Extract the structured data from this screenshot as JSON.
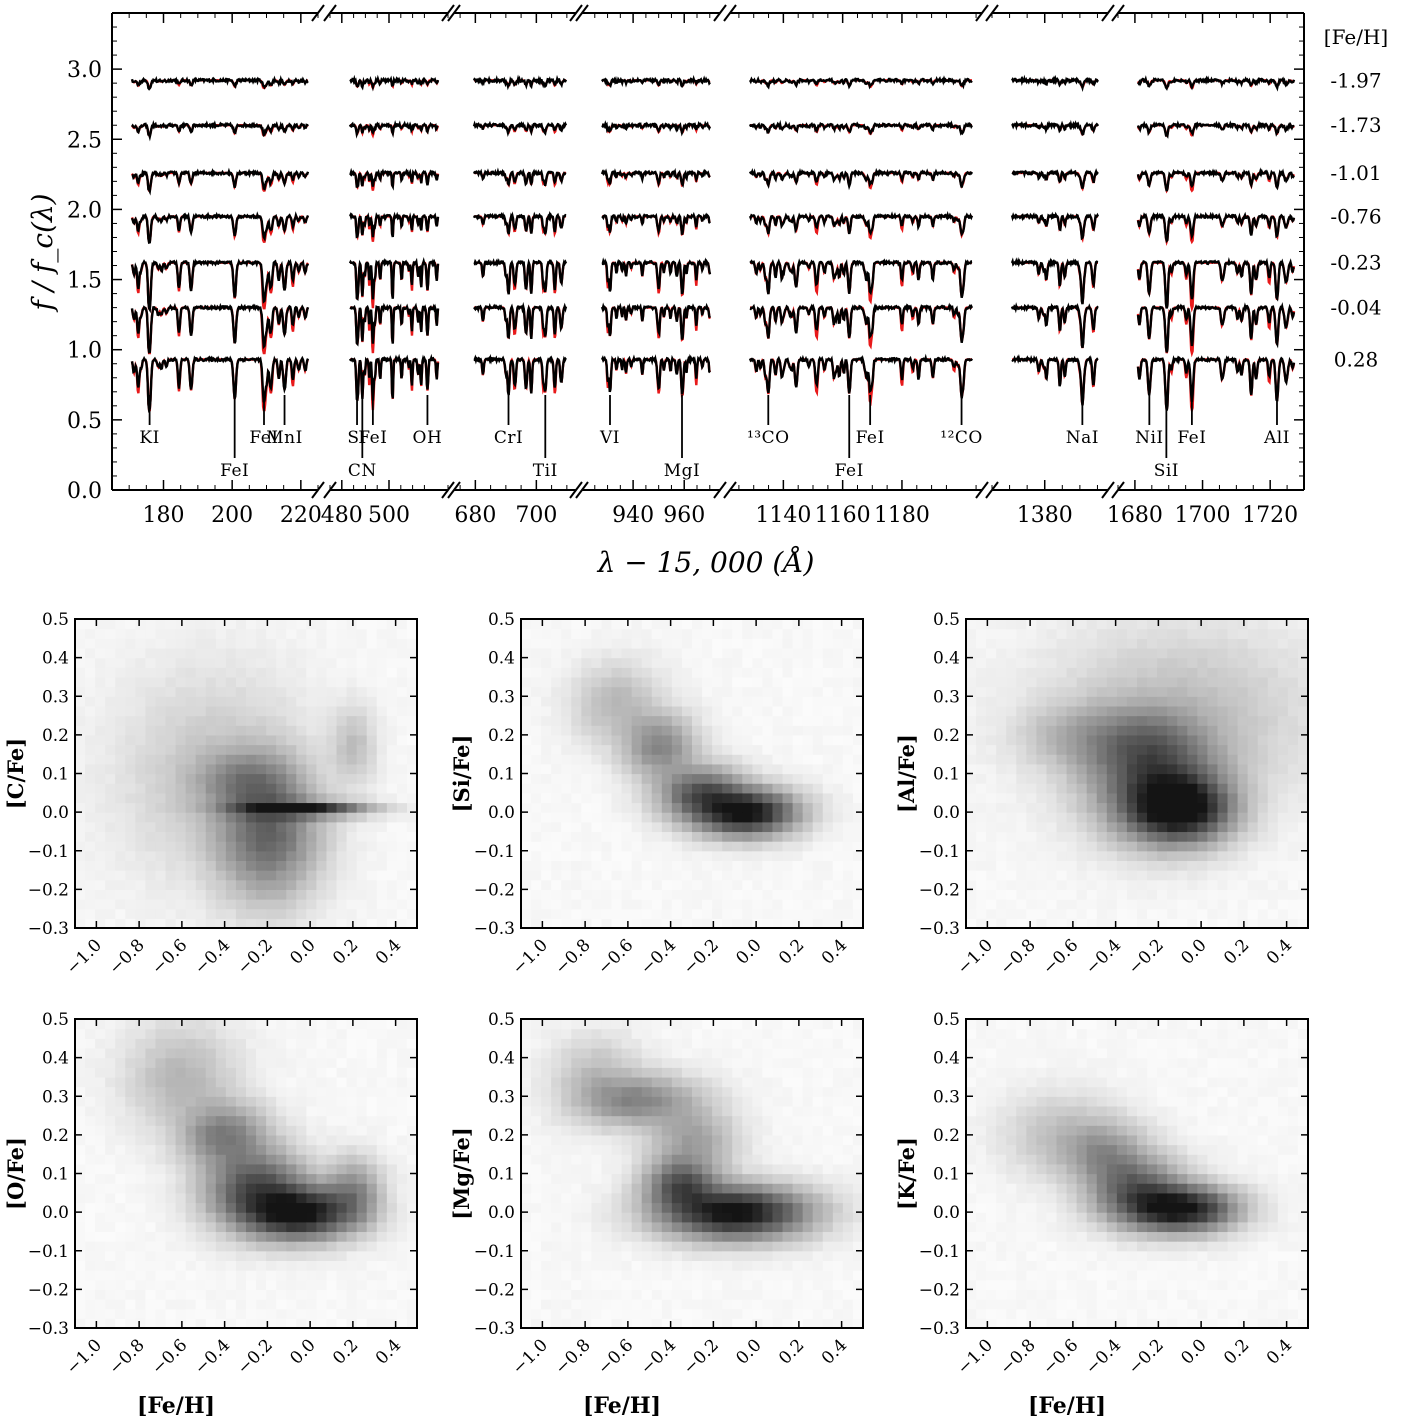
{
  "chart_data": [
    {
      "type": "line",
      "xlabel": "λ − 15, 000 (Å)",
      "ylabel": "f / f_c(λ)",
      "ylim": [
        0.0,
        3.4
      ],
      "yticks": [
        "0.0",
        "0.5",
        "1.0",
        "1.5",
        "2.0",
        "2.5",
        "3.0"
      ],
      "legend_title": "[Fe/H]",
      "series_labels": [
        "-1.97",
        "-1.73",
        "-1.01",
        "-0.76",
        "-0.23",
        "-0.04",
        "0.28"
      ],
      "series_offsets": [
        2.92,
        2.6,
        2.26,
        1.95,
        1.62,
        1.3,
        0.93
      ],
      "series_depth": [
        0.15,
        0.2,
        0.35,
        0.5,
        0.9,
        0.9,
        1.0
      ],
      "colors": {
        "observed": "#000000",
        "model": "#e8191a"
      },
      "segments": [
        {
          "x": [
            165,
            225
          ],
          "ticks": [
            "180",
            "200",
            "220"
          ],
          "tick_vals": [
            180,
            200,
            220
          ],
          "lines": [
            {
              "name": "KI",
              "x": 171
            },
            {
              "name": "FeI",
              "x": 200
            },
            {
              "name": "FeI",
              "x": 210
            },
            {
              "name": "MnI",
              "x": 217
            }
          ]
        },
        {
          "x": [
            475,
            525
          ],
          "ticks": [
            "480",
            "500"
          ],
          "tick_vals": [
            480,
            500
          ],
          "lines": [
            {
              "name": "SI",
              "x": 479
            },
            {
              "name": "CN",
              "x": 482
            },
            {
              "name": "FeI",
              "x": 488
            },
            {
              "name": "OH",
              "x": 519
            }
          ]
        },
        {
          "x": [
            673,
            713
          ],
          "ticks": [
            "680",
            "700"
          ],
          "tick_vals": [
            680,
            700
          ],
          "lines": [
            {
              "name": "CrI",
              "x": 688
            },
            {
              "name": "TiI",
              "x": 704
            }
          ]
        },
        {
          "x": [
            920,
            974
          ],
          "ticks": [
            "940",
            "960"
          ],
          "tick_vals": [
            940,
            960
          ],
          "lines": [
            {
              "name": "VI",
              "x": 924
            },
            {
              "name": "MgI",
              "x": 960
            }
          ]
        },
        {
          "x": [
            1122,
            1207
          ],
          "ticks": [
            "1140",
            "1160",
            "1180"
          ],
          "tick_vals": [
            1140,
            1160,
            1180
          ],
          "lines": [
            {
              "name": "¹³CO",
              "x": 1129
            },
            {
              "name": "FeI",
              "x": 1160
            },
            {
              "name": "FeI",
              "x": 1168
            },
            {
              "name": "¹²CO",
              "x": 1203
            }
          ]
        },
        {
          "x": [
            1365,
            1398
          ],
          "ticks": [
            "1380"
          ],
          "tick_vals": [
            1380
          ],
          "lines": [
            {
              "name": "NaI",
              "x": 1392
            }
          ]
        },
        {
          "x": [
            1675,
            1730
          ],
          "ticks": [
            "1680",
            "1700",
            "1720"
          ],
          "tick_vals": [
            1680,
            1700,
            1720
          ],
          "lines": [
            {
              "name": "NiI",
              "x": 1679
            },
            {
              "name": "SiI",
              "x": 1685
            },
            {
              "name": "FeI",
              "x": 1694
            },
            {
              "name": "AlI",
              "x": 1724
            }
          ]
        }
      ]
    },
    {
      "type": "heatmap",
      "xlabel": "[Fe/H]",
      "xlim": [
        -1.1,
        0.5
      ],
      "ylim": [
        -0.3,
        0.5
      ],
      "xticks": [
        "−1.0",
        "−0.8",
        "−0.6",
        "−0.4",
        "−0.2",
        "0.0",
        "0.2",
        "0.4"
      ],
      "yticks": [
        "0.5",
        "0.4",
        "0.3",
        "0.2",
        "0.1",
        "0.0",
        "−0.1",
        "−0.2",
        "−0.3"
      ],
      "panels": [
        {
          "ylabel": "[C/Fe]",
          "blobs": [
            {
              "x": -0.05,
              "y": 0.01,
              "sx": 0.17,
              "sy": 0.012,
              "w": 1.0
            },
            {
              "x": -0.2,
              "y": -0.05,
              "sx": 0.14,
              "sy": 0.1,
              "w": 0.45
            },
            {
              "x": -0.3,
              "y": 0.08,
              "sx": 0.14,
              "sy": 0.05,
              "w": 0.25
            },
            {
              "x": 0.2,
              "y": 0.17,
              "sx": 0.06,
              "sy": 0.06,
              "w": 0.1
            },
            {
              "x": -0.45,
              "y": 0.1,
              "sx": 0.25,
              "sy": 0.15,
              "w": 0.08
            }
          ]
        },
        {
          "ylabel": "[Si/Fe]",
          "blobs": [
            {
              "x": -0.05,
              "y": 0.0,
              "sx": 0.14,
              "sy": 0.035,
              "w": 1.0
            },
            {
              "x": -0.25,
              "y": 0.05,
              "sx": 0.12,
              "sy": 0.04,
              "w": 0.55
            },
            {
              "x": -0.45,
              "y": 0.17,
              "sx": 0.1,
              "sy": 0.05,
              "w": 0.3
            },
            {
              "x": -0.65,
              "y": 0.28,
              "sx": 0.12,
              "sy": 0.06,
              "w": 0.12
            }
          ]
        },
        {
          "ylabel": "[Al/Fe]",
          "blobs": [
            {
              "x": -0.1,
              "y": 0.01,
              "sx": 0.14,
              "sy": 0.05,
              "w": 1.0
            },
            {
              "x": -0.2,
              "y": 0.07,
              "sx": 0.18,
              "sy": 0.08,
              "w": 0.55
            },
            {
              "x": -0.3,
              "y": 0.18,
              "sx": 0.18,
              "sy": 0.06,
              "w": 0.3
            },
            {
              "x": -0.1,
              "y": 0.25,
              "sx": 0.35,
              "sy": 0.13,
              "w": 0.1
            },
            {
              "x": -0.6,
              "y": 0.2,
              "sx": 0.15,
              "sy": 0.05,
              "w": 0.1
            }
          ]
        },
        {
          "ylabel": "[O/Fe]",
          "blobs": [
            {
              "x": -0.05,
              "y": 0.0,
              "sx": 0.15,
              "sy": 0.04,
              "w": 1.0
            },
            {
              "x": -0.25,
              "y": 0.06,
              "sx": 0.14,
              "sy": 0.06,
              "w": 0.6
            },
            {
              "x": -0.4,
              "y": 0.2,
              "sx": 0.12,
              "sy": 0.05,
              "w": 0.35
            },
            {
              "x": -0.6,
              "y": 0.35,
              "sx": 0.15,
              "sy": 0.08,
              "w": 0.12
            },
            {
              "x": 0.2,
              "y": 0.05,
              "sx": 0.08,
              "sy": 0.05,
              "w": 0.3
            }
          ]
        },
        {
          "ylabel": "[Mg/Fe]",
          "blobs": [
            {
              "x": -0.1,
              "y": 0.0,
              "sx": 0.2,
              "sy": 0.04,
              "w": 1.0
            },
            {
              "x": -0.35,
              "y": 0.07,
              "sx": 0.1,
              "sy": 0.04,
              "w": 0.55
            },
            {
              "x": -0.55,
              "y": 0.29,
              "sx": 0.16,
              "sy": 0.04,
              "w": 0.3
            },
            {
              "x": -0.3,
              "y": 0.18,
              "sx": 0.12,
              "sy": 0.06,
              "w": 0.2
            },
            {
              "x": -0.75,
              "y": 0.35,
              "sx": 0.12,
              "sy": 0.06,
              "w": 0.1
            }
          ]
        },
        {
          "ylabel": "[K/Fe]",
          "blobs": [
            {
              "x": -0.1,
              "y": 0.01,
              "sx": 0.15,
              "sy": 0.035,
              "w": 1.0
            },
            {
              "x": -0.3,
              "y": 0.06,
              "sx": 0.13,
              "sy": 0.05,
              "w": 0.5
            },
            {
              "x": -0.45,
              "y": 0.15,
              "sx": 0.12,
              "sy": 0.05,
              "w": 0.25
            },
            {
              "x": -0.65,
              "y": 0.2,
              "sx": 0.15,
              "sy": 0.06,
              "w": 0.1
            }
          ]
        }
      ]
    }
  ]
}
